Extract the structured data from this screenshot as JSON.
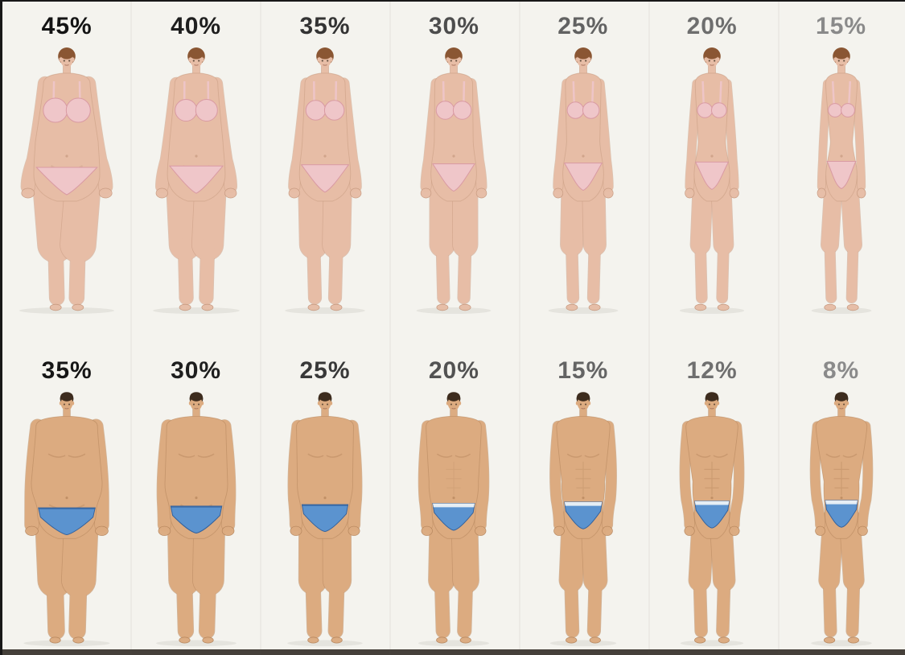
{
  "canvas": {
    "background": "#f4f3ee",
    "frame_color": "#181818",
    "bottom_bar_color": "#45403a",
    "seam_color": "#e9e8e2"
  },
  "rows": [
    {
      "id": "women",
      "gender": "female",
      "skin": "#e7bda6",
      "skin_shade": "#c79a80",
      "hair": "#8a5633",
      "swimsuit": "#efc6c9",
      "swimsuit_edge": "#d99aa3",
      "figures": [
        {
          "label": "45%",
          "fat": 1.0,
          "label_color": "#141414"
        },
        {
          "label": "40%",
          "fat": 0.78,
          "label_color": "#1e1e1e"
        },
        {
          "label": "35%",
          "fat": 0.6,
          "label_color": "#333333"
        },
        {
          "label": "30%",
          "fat": 0.45,
          "label_color": "#4d4d4d"
        },
        {
          "label": "25%",
          "fat": 0.32,
          "label_color": "#626262"
        },
        {
          "label": "20%",
          "fat": 0.18,
          "label_color": "#6e6e6e"
        },
        {
          "label": "15%",
          "fat": 0.06,
          "label_color": "#8a8a8a"
        }
      ]
    },
    {
      "id": "men",
      "gender": "male",
      "skin": "#dcab80",
      "skin_shade": "#b3835a",
      "hair": "#3d2c1e",
      "swimsuit": "#5b93cf",
      "swimsuit_edge": "#33619c",
      "waistband": "#eef2f5",
      "figures": [
        {
          "label": "35%",
          "fat": 1.0,
          "label_color": "#161616"
        },
        {
          "label": "30%",
          "fat": 0.78,
          "label_color": "#1e1e1e"
        },
        {
          "label": "25%",
          "fat": 0.58,
          "label_color": "#383838"
        },
        {
          "label": "20%",
          "fat": 0.42,
          "label_color": "#525252"
        },
        {
          "label": "15%",
          "fat": 0.24,
          "label_color": "#646464"
        },
        {
          "label": "12%",
          "fat": 0.12,
          "label_color": "#6f6f6f"
        },
        {
          "label": "8%",
          "fat": 0.03,
          "label_color": "#8a8a8a"
        }
      ]
    }
  ]
}
